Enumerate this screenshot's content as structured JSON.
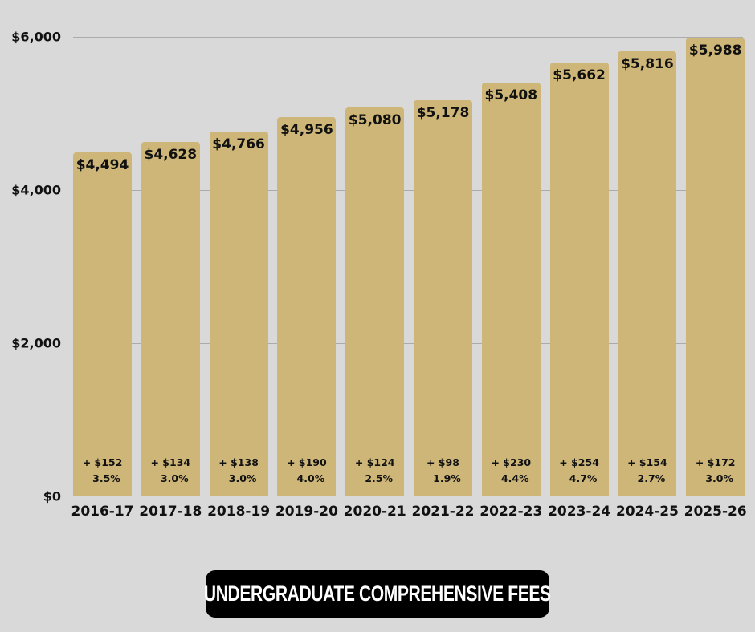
{
  "chart_data": {
    "type": "bar",
    "title": "UNDERGRADUATE COMPREHENSIVE FEES",
    "xlabel": "",
    "ylabel": "",
    "ylim": [
      0,
      6000
    ],
    "grid": true,
    "legend": null,
    "categories": [
      "2016-17",
      "2017-18",
      "2018-19",
      "2019-20",
      "2020-21",
      "2021-22",
      "2022-23",
      "2023-24",
      "2024-25",
      "2025-26"
    ],
    "values": [
      4494,
      4628,
      4766,
      4956,
      5080,
      5178,
      5408,
      5662,
      5816,
      5988
    ],
    "value_labels": [
      "$4,494",
      "$4,628",
      "$4,766",
      "$4,956",
      "$5,080",
      "$5,178",
      "$5,408",
      "$5,662",
      "$5,816",
      "$5,988"
    ],
    "annotations": [
      {
        "change": "+ $152",
        "pct": "3.5%"
      },
      {
        "change": "+ $134",
        "pct": "3.0%"
      },
      {
        "change": "+ $138",
        "pct": "3.0%"
      },
      {
        "change": "+ $190",
        "pct": "4.0%"
      },
      {
        "change": "+ $124",
        "pct": "2.5%"
      },
      {
        "change": "+ $98",
        "pct": "1.9%"
      },
      {
        "change": "+ $230",
        "pct": "4.4%"
      },
      {
        "change": "+ $254",
        "pct": "4.7%"
      },
      {
        "change": "+ $154",
        "pct": "2.7%"
      },
      {
        "change": "+ $172",
        "pct": "3.0%"
      }
    ],
    "y_ticks": [
      {
        "value": 0,
        "label": "$0"
      },
      {
        "value": 2000,
        "label": "$2,000"
      },
      {
        "value": 4000,
        "label": "$4,000"
      },
      {
        "value": 6000,
        "label": "$6,000"
      }
    ]
  },
  "colors": {
    "background": "#d9d9d9",
    "bar": "#cdb677",
    "gridline": "#ababab",
    "title_bg": "#000000",
    "title_text": "#ffffff"
  }
}
